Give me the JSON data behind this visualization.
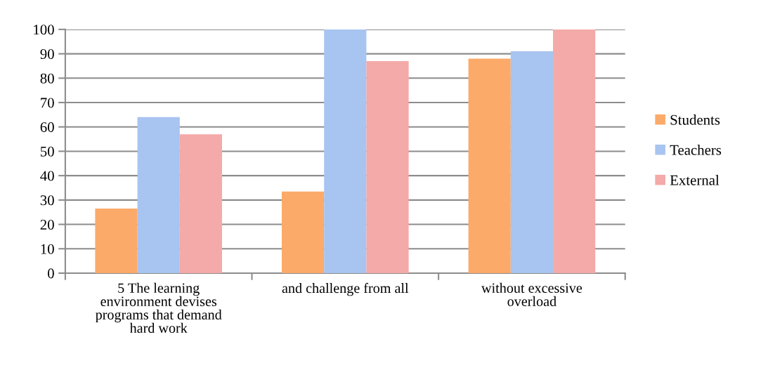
{
  "chart_data": {
    "type": "bar",
    "categories": [
      "5 The learning\nenvironment devises\nprograms that demand\nhard work",
      "and challenge from all",
      "without excessive\noverload"
    ],
    "series": [
      {
        "name": "Students",
        "color": "#fbaa6a",
        "values": [
          26.5,
          33.5,
          88
        ]
      },
      {
        "name": "Teachers",
        "color": "#a8c4f0",
        "values": [
          64,
          100,
          91
        ]
      },
      {
        "name": "External",
        "color": "#f4aaa8",
        "values": [
          57,
          87,
          100
        ]
      }
    ],
    "ylim": [
      0,
      100
    ],
    "yticks": [
      0,
      10,
      20,
      30,
      40,
      50,
      60,
      70,
      80,
      90,
      100
    ],
    "grid": "y",
    "legend": "right"
  }
}
